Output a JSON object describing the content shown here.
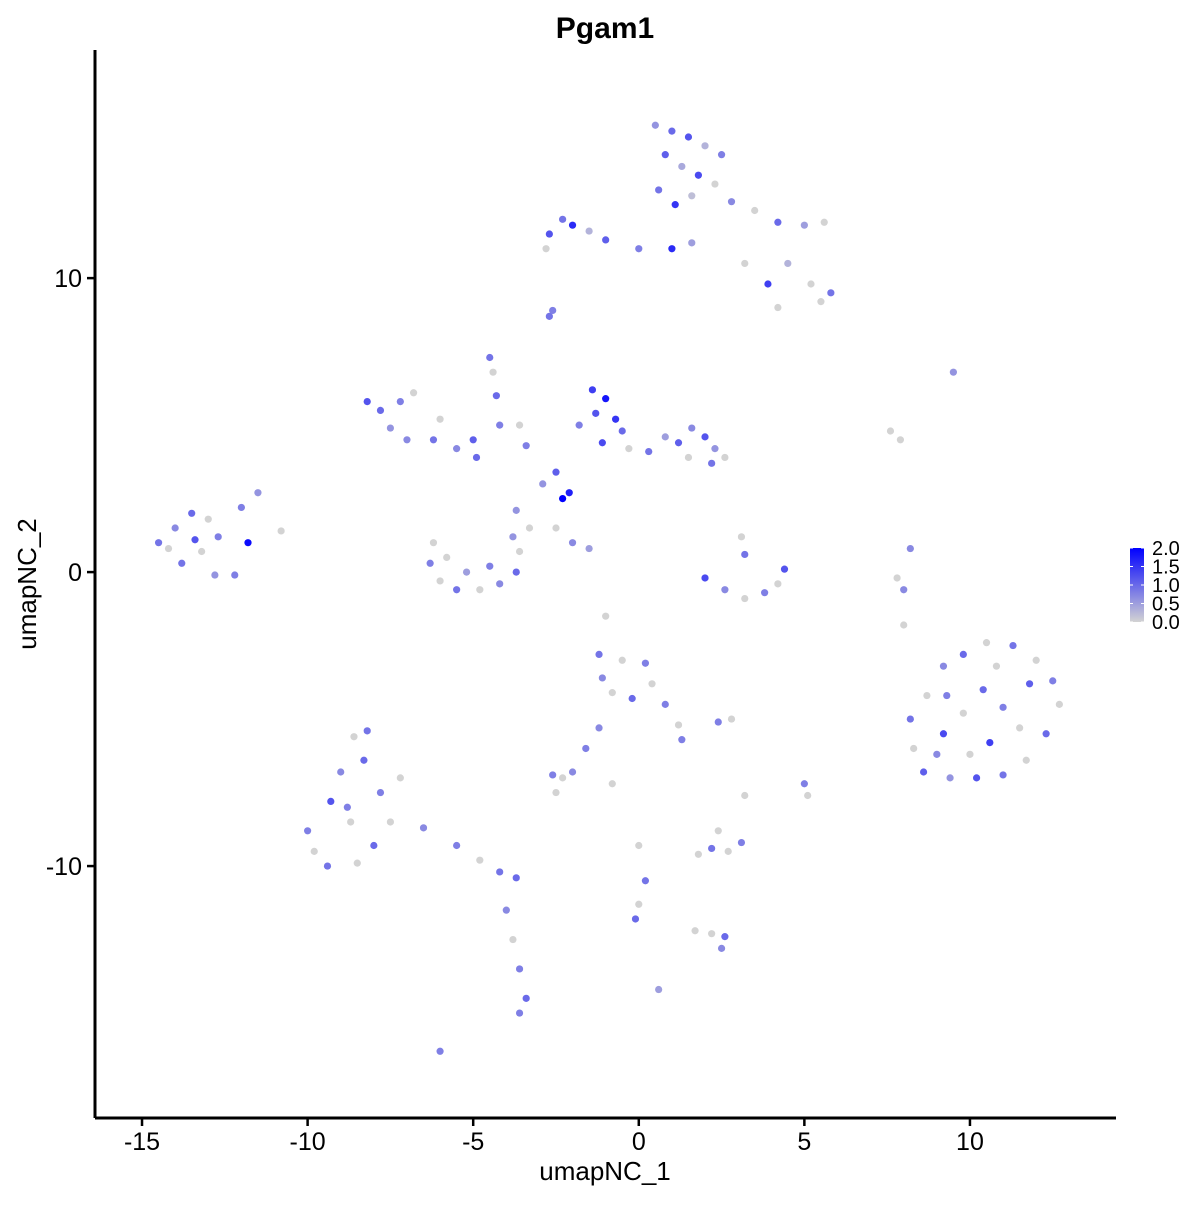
{
  "chart_data": {
    "type": "scatter",
    "title": "Pgam1",
    "x_label": "umapNC_1",
    "y_label": "umapNC_2",
    "xlim": [
      -16.42,
      14.41
    ],
    "ylim": [
      -18.57,
      17.76
    ],
    "xticks": [
      -15,
      -10,
      -5,
      0,
      5,
      10
    ],
    "yticks": [
      -10,
      0,
      10
    ],
    "color_low": "#d3d3d3",
    "color_high": "#0000ff",
    "colorbar_lim": [
      0,
      2
    ],
    "colorbar_ticks": [
      {
        "value": 0,
        "label": "0.0"
      },
      0.5,
      {
        "value": 1,
        "label": "1.0"
      },
      1.5,
      {
        "value": 2,
        "label": "2.0"
      }
    ],
    "x": [
      0.5,
      1.0,
      1.5,
      2.0,
      2.5,
      0.8,
      1.3,
      1.8,
      2.3,
      0.6,
      1.1,
      1.6,
      2.8,
      3.5,
      4.2,
      5.0,
      5.6,
      4.5,
      5.2,
      5.8,
      5.5,
      4.2,
      3.2,
      3.9,
      1.0,
      0.0,
      -1.0,
      -2.0,
      -2.7,
      -2.3,
      -2.8,
      -1.5,
      1.6,
      -2.7,
      -2.6,
      -4.5,
      -4.4,
      -4.3,
      -4.2,
      -1.4,
      -1.0,
      -1.3,
      -0.7,
      -1.8,
      -0.5,
      -1.1,
      -0.3,
      0.3,
      0.8,
      1.2,
      1.6,
      2.0,
      2.3,
      2.6,
      2.2,
      1.5,
      -2.3,
      -2.1,
      -2.5,
      -2.9,
      -3.4,
      -4.9,
      -5.5,
      -6.2,
      -7.2,
      -7.8,
      -7.5,
      -6.8,
      -8.2,
      -7.0,
      -6.0,
      -5.0,
      -2.5,
      -2.0,
      -1.5,
      -3.3,
      -3.7,
      -3.6,
      -6.2,
      -6.3,
      -6.0,
      -5.5,
      -4.8,
      -4.2,
      -3.7,
      -3.6,
      -3.8,
      -5.2,
      -4.5,
      -5.8,
      2.0,
      2.6,
      3.2,
      3.8,
      4.2,
      4.4,
      3.2,
      3.1,
      -14.5,
      -14.0,
      -13.5,
      -13.0,
      -12.7,
      -13.2,
      -13.8,
      -14.2,
      -13.4,
      -12.2,
      -12.8,
      -11.8,
      -11.5,
      -12.0,
      -10.8,
      8.2,
      8.7,
      9.2,
      9.8,
      10.5,
      11.3,
      12.0,
      12.5,
      12.7,
      12.3,
      11.7,
      11.0,
      10.2,
      9.4,
      8.6,
      8.3,
      9.2,
      9.8,
      10.4,
      11.0,
      11.5,
      10.6,
      10.0,
      9.3,
      11.8,
      10.8,
      9.0,
      9.5,
      7.6,
      7.9,
      8.2,
      7.8,
      8.0,
      8.0,
      -10.0,
      -9.8,
      -9.4,
      -8.5,
      -8.0,
      -7.5,
      -7.8,
      -8.3,
      -8.6,
      -9.0,
      -9.3,
      -8.7,
      -8.2,
      -8.8,
      -7.2,
      -6.5,
      -5.5,
      -4.8,
      -4.2,
      -3.7,
      -4.0,
      -3.8,
      -3.6,
      -3.4,
      -3.6,
      -6.0,
      -1.2,
      -0.5,
      0.2,
      0.4,
      -0.2,
      -0.8,
      -1.1,
      0.8,
      1.2,
      1.3,
      -1.2,
      -1.6,
      2.8,
      2.4,
      -2.6,
      -2.3,
      -2.5,
      -2.0,
      -0.8,
      0.0,
      0.2,
      -0.1,
      0.0,
      0.6,
      1.8,
      2.2,
      2.7,
      3.1,
      2.4,
      2.6,
      2.2,
      1.7,
      2.5,
      5.0,
      5.1,
      3.2,
      -1.0
    ],
    "y": [
      15.2,
      15.0,
      14.8,
      14.5,
      14.2,
      14.2,
      13.8,
      13.5,
      13.2,
      13.0,
      12.5,
      12.8,
      12.6,
      12.3,
      11.9,
      11.8,
      11.9,
      10.5,
      9.8,
      9.5,
      9.2,
      9.0,
      10.5,
      9.8,
      11.0,
      11.0,
      11.3,
      11.8,
      11.5,
      12.0,
      11.0,
      11.6,
      11.2,
      8.7,
      8.9,
      7.3,
      6.8,
      6.0,
      5.0,
      6.2,
      5.9,
      5.4,
      5.2,
      5.0,
      4.8,
      4.4,
      4.2,
      4.1,
      4.6,
      4.4,
      4.9,
      4.6,
      4.2,
      3.9,
      3.7,
      3.9,
      2.5,
      2.7,
      3.4,
      3.0,
      4.3,
      3.9,
      4.2,
      4.5,
      5.8,
      5.5,
      4.9,
      6.1,
      5.8,
      4.5,
      5.2,
      4.5,
      1.5,
      1.0,
      0.8,
      1.5,
      2.1,
      5.0,
      1.0,
      0.3,
      -0.3,
      -0.6,
      -0.6,
      -0.4,
      0.0,
      0.7,
      1.2,
      0.0,
      0.2,
      0.5,
      -0.2,
      -0.6,
      -0.9,
      -0.7,
      -0.4,
      0.1,
      0.6,
      1.2,
      1.0,
      1.5,
      2.0,
      1.8,
      1.2,
      0.7,
      0.3,
      0.8,
      1.1,
      -0.1,
      -0.1,
      1.0,
      2.7,
      2.2,
      1.4,
      -5.0,
      -4.2,
      -3.2,
      -2.8,
      -2.4,
      -2.5,
      -3.0,
      -3.7,
      -4.5,
      -5.5,
      -6.4,
      -6.9,
      -7.0,
      -7.0,
      -6.8,
      -6.0,
      -5.5,
      -4.8,
      -4.0,
      -4.6,
      -5.3,
      -5.8,
      -6.2,
      -4.2,
      -3.8,
      -3.2,
      -6.2,
      6.8,
      4.8,
      4.5,
      0.8,
      -0.2,
      -1.8,
      -0.6,
      -8.8,
      -9.5,
      -10.0,
      -9.9,
      -9.3,
      -8.5,
      -7.5,
      -6.4,
      -5.6,
      -6.8,
      -7.8,
      -8.5,
      -5.4,
      -8.0,
      -7.0,
      -8.7,
      -9.3,
      -9.8,
      -10.2,
      -10.4,
      -11.5,
      -12.5,
      -13.5,
      -14.5,
      -15.0,
      -16.3,
      -2.8,
      -3.0,
      -3.1,
      -3.8,
      -4.3,
      -4.1,
      -3.6,
      -4.5,
      -5.2,
      -5.7,
      -5.3,
      -6.0,
      -5.0,
      -5.1,
      -6.9,
      -7.0,
      -7.5,
      -6.8,
      -7.2,
      -9.3,
      -10.5,
      -11.8,
      -11.3,
      -14.2,
      -9.6,
      -9.4,
      -9.5,
      -9.2,
      -8.8,
      -12.4,
      -12.3,
      -12.2,
      -12.8,
      -7.2,
      -7.6,
      -7.6,
      -1.5
    ],
    "expression": [
      0.6,
      1.0,
      1.2,
      0.3,
      0.8,
      1.1,
      0.4,
      1.3,
      0.0,
      0.9,
      1.5,
      0.2,
      0.7,
      0.0,
      1.0,
      0.5,
      0.0,
      0.3,
      0.0,
      0.9,
      0.0,
      0.0,
      0.0,
      1.4,
      1.6,
      0.8,
      1.1,
      1.6,
      1.2,
      0.9,
      0.0,
      0.3,
      0.5,
      0.9,
      0.8,
      0.9,
      0.0,
      1.0,
      0.8,
      1.4,
      1.8,
      1.2,
      1.5,
      0.8,
      1.0,
      1.3,
      0.0,
      0.9,
      0.5,
      1.1,
      0.7,
      1.2,
      0.6,
      0.0,
      0.9,
      0.0,
      2.0,
      1.7,
      1.1,
      0.6,
      0.8,
      1.0,
      0.7,
      0.9,
      0.8,
      1.0,
      0.6,
      0.0,
      1.2,
      0.7,
      0.0,
      1.1,
      0.0,
      0.7,
      0.5,
      0.0,
      0.6,
      0.0,
      0.0,
      0.8,
      0.0,
      0.9,
      0.0,
      0.7,
      1.0,
      0.0,
      0.6,
      0.5,
      0.8,
      0.0,
      1.3,
      0.7,
      0.0,
      0.8,
      0.0,
      1.2,
      0.9,
      0.0,
      0.9,
      0.7,
      1.0,
      0.0,
      0.8,
      0.0,
      0.9,
      0.0,
      1.2,
      0.8,
      0.6,
      1.9,
      0.6,
      0.8,
      0.0,
      0.9,
      0.0,
      0.7,
      1.0,
      0.0,
      0.9,
      0.0,
      0.8,
      0.0,
      1.0,
      0.0,
      0.9,
      1.2,
      0.6,
      1.1,
      0.0,
      1.3,
      0.0,
      1.0,
      0.8,
      0.0,
      1.4,
      0.0,
      0.8,
      1.1,
      0.0,
      0.7,
      0.6,
      0.0,
      0.0,
      0.7,
      0.0,
      0.0,
      0.7,
      0.8,
      0.0,
      0.9,
      0.0,
      1.0,
      0.0,
      0.8,
      1.0,
      0.0,
      0.7,
      1.2,
      0.0,
      0.9,
      0.8,
      0.0,
      0.7,
      0.8,
      0.0,
      0.9,
      1.0,
      0.7,
      0.0,
      0.8,
      1.0,
      0.8,
      0.8,
      0.9,
      0.0,
      0.8,
      0.0,
      1.0,
      0.0,
      0.7,
      0.8,
      0.0,
      0.8,
      0.7,
      0.8,
      0.0,
      0.8,
      0.8,
      0.0,
      0.0,
      0.7,
      0.0,
      0.0,
      0.9,
      1.0,
      0.0,
      0.5,
      0.0,
      0.9,
      0.0,
      0.8,
      0.0,
      1.0,
      0.0,
      0.0,
      0.7,
      0.8,
      0.0,
      0.0,
      0.0
    ]
  }
}
